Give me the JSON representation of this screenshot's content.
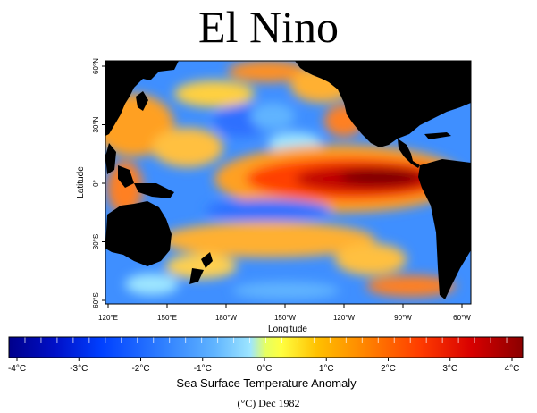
{
  "title": "El Nino",
  "map": {
    "lat_ticks": [
      "60°N",
      "30°N",
      "0°",
      "30°S",
      "60°S"
    ],
    "lon_ticks": [
      "120°E",
      "150°E",
      "180°W",
      "150°W",
      "120°W",
      "90°W",
      "60°W"
    ],
    "xlabel": "Longitude",
    "ylabel": "Latitude",
    "land_color": "#000000"
  },
  "colorbar": {
    "labels": [
      "-4°C",
      "-3°C",
      "-2°C",
      "-1°C",
      "0°C",
      "1°C",
      "2°C",
      "3°C",
      "4°C"
    ],
    "title": "Sea Surface Temperature Anomaly",
    "colors": [
      "#00008b",
      "#0010c8",
      "#0040ff",
      "#2f7fff",
      "#60b4ff",
      "#9ee6ff",
      "#ffff40",
      "#ffc000",
      "#ff8000",
      "#ff3c00",
      "#d80000",
      "#8b0000"
    ]
  },
  "footer": "(°C) Dec 1982",
  "chart_data": {
    "type": "heatmap",
    "variable": "Sea Surface Temperature Anomaly",
    "unit": "°C",
    "date": "Dec 1982",
    "value_range": [
      -4,
      4
    ],
    "x_range": [
      "120°E",
      "60°W"
    ],
    "y_range": [
      "60°S",
      "60°N"
    ]
  }
}
